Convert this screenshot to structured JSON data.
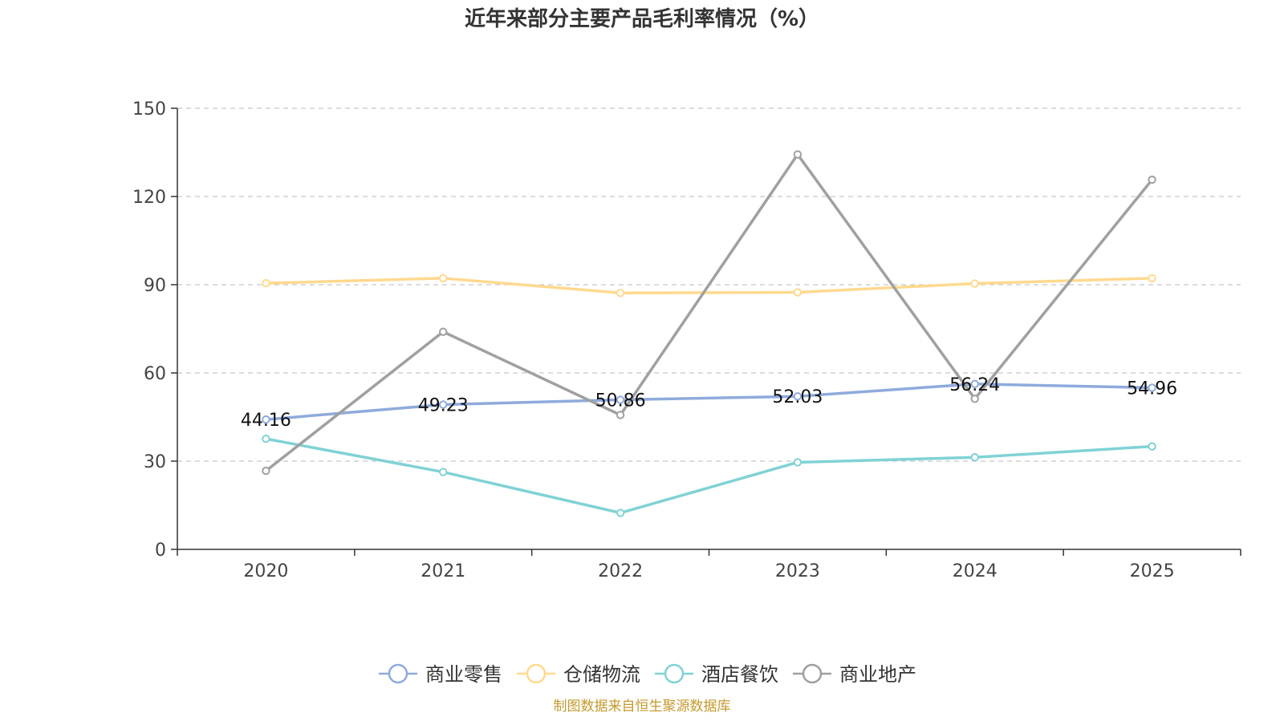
{
  "chart_data": {
    "type": "line",
    "title": "近年来部分主要产品毛利率情况（%）",
    "xlabel": "",
    "ylabel": "",
    "categories": [
      "2020",
      "2021",
      "2022",
      "2023",
      "2024",
      "2025"
    ],
    "y_ticks": [
      "0",
      "30",
      "60",
      "90",
      "120",
      "150"
    ],
    "ylim": [
      0,
      150
    ],
    "grid": true,
    "legend_position": "bottom",
    "series": [
      {
        "name": "商业零售",
        "color": "#8FAADC",
        "values": [
          44.16,
          49.23,
          50.86,
          52.03,
          56.24,
          54.96
        ],
        "labels": [
          "44.16",
          "49.23",
          "50.86",
          "52.03",
          "56.24",
          "54.96"
        ],
        "show_labels": true
      },
      {
        "name": "仓储物流",
        "color": "#FFD98E",
        "values": [
          90.5,
          92.2,
          87.2,
          87.4,
          90.4,
          92.2
        ],
        "show_labels": false
      },
      {
        "name": "酒店餐饮",
        "color": "#80D2D5",
        "values": [
          37.6,
          26.3,
          12.4,
          29.6,
          31.3,
          35.0
        ],
        "show_labels": false
      },
      {
        "name": "商业地产",
        "color": "#A0A0A0",
        "values": [
          26.7,
          74.0,
          45.7,
          134.3,
          51.2,
          125.7
        ],
        "show_labels": false
      }
    ],
    "source": "制图数据来自恒生聚源数据库",
    "source_color": "#C59A2E"
  }
}
